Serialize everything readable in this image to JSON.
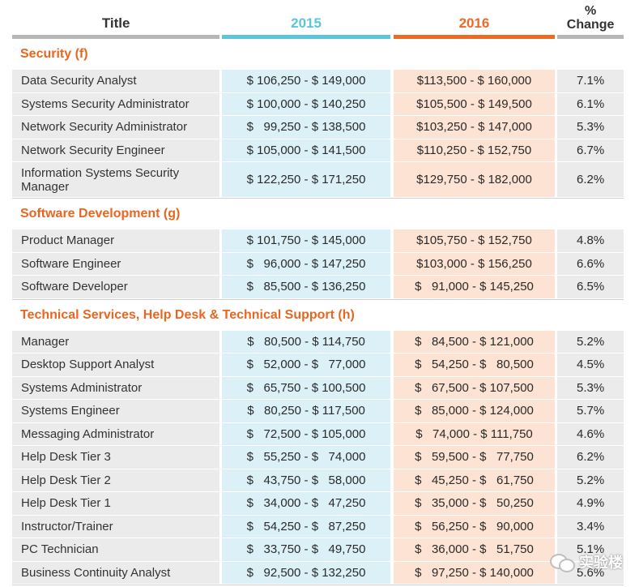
{
  "header": {
    "title": "Title",
    "col_2015": "2015",
    "col_2016": "2016",
    "pct_line1": "%",
    "pct_line2": "Change"
  },
  "sections": [
    {
      "name": "Security (f)",
      "rows": [
        {
          "title": "Data Security Analyst",
          "v2015": "$ 106,250 - $ 149,000",
          "v2016": "$113,500 - $ 160,000",
          "change": "7.1%"
        },
        {
          "title": "Systems Security Administrator",
          "v2015": "$ 100,000 - $ 140,250",
          "v2016": "$105,500 - $ 149,500",
          "change": "6.1%"
        },
        {
          "title": "Network Security Administrator",
          "v2015": "$   99,250 - $ 138,500",
          "v2016": "$103,250 - $ 147,000",
          "change": "5.3%"
        },
        {
          "title": "Network Security Engineer",
          "v2015": "$ 105,000 - $ 141,500",
          "v2016": "$110,250 - $ 152,750",
          "change": "6.7%"
        },
        {
          "title": "Information Systems Security Manager",
          "v2015": "$ 122,250 - $ 171,250",
          "v2016": "$129,750 - $ 182,000",
          "change": "6.2%"
        }
      ]
    },
    {
      "name": "Software Development (g)",
      "rows": [
        {
          "title": "Product Manager",
          "v2015": "$ 101,750 - $ 145,000",
          "v2016": "$105,750 - $ 152,750",
          "change": "4.8%"
        },
        {
          "title": "Software Engineer",
          "v2015": "$   96,000 - $ 147,250",
          "v2016": "$103,000 - $ 156,250",
          "change": "6.6%"
        },
        {
          "title": "Software Developer",
          "v2015": "$   85,500 - $ 136,250",
          "v2016": "$   91,000 - $ 145,250",
          "change": "6.5%"
        }
      ]
    },
    {
      "name": "Technical Services, Help Desk & Technical Support (h)",
      "rows": [
        {
          "title": "Manager",
          "v2015": "$   80,500 - $ 114,750",
          "v2016": "$   84,500 - $ 121,000",
          "change": "5.2%"
        },
        {
          "title": "Desktop Support Analyst",
          "v2015": "$   52,000 - $   77,000",
          "v2016": "$   54,250 - $   80,500",
          "change": "4.5%"
        },
        {
          "title": "Systems Administrator",
          "v2015": "$   65,750 - $ 100,500",
          "v2016": "$   67,500 - $ 107,500",
          "change": "5.3%"
        },
        {
          "title": "Systems Engineer",
          "v2015": "$   80,250 - $ 117,500",
          "v2016": "$   85,000 - $ 124,000",
          "change": "5.7%"
        },
        {
          "title": "Messaging Administrator",
          "v2015": "$   72,500 - $ 105,000",
          "v2016": "$   74,000 - $ 111,750",
          "change": "4.6%"
        },
        {
          "title": "Help Desk Tier 3",
          "v2015": "$   55,250 - $   74,000",
          "v2016": "$   59,500 - $   77,750",
          "change": "6.2%"
        },
        {
          "title": "Help Desk Tier 2",
          "v2015": "$   43,750 - $   58,000",
          "v2016": "$   45,250 - $   61,750",
          "change": "5.2%"
        },
        {
          "title": "Help Desk Tier 1",
          "v2015": "$   34,000 - $   47,250",
          "v2016": "$   35,000 - $   50,250",
          "change": "4.9%"
        },
        {
          "title": "Instructor/Trainer",
          "v2015": "$   54,250 - $   87,250",
          "v2016": "$   56,250 - $   90,000",
          "change": "3.4%"
        },
        {
          "title": "PC Technician",
          "v2015": "$   33,750 - $   49,750",
          "v2016": "$   36,000 - $   51,750",
          "change": "5.1%"
        },
        {
          "title": "Business Continuity Analyst",
          "v2015": "$   92,500 - $ 132,250",
          "v2016": "$   97,250 - $ 140,000",
          "change": "5.6%"
        }
      ]
    }
  ],
  "watermark": "实验楼"
}
